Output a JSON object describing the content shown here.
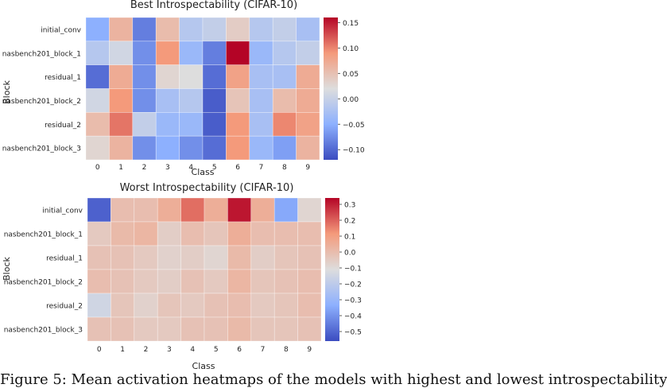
{
  "chart_data": [
    {
      "type": "heatmap",
      "title": "Best Introspectability (CIFAR-10)",
      "xlabel": "Class",
      "ylabel": "Block",
      "x_categories": [
        "0",
        "1",
        "2",
        "3",
        "4",
        "5",
        "6",
        "7",
        "8",
        "9"
      ],
      "y_categories": [
        "initial_conv",
        "nasbench201_block_1",
        "residual_1",
        "nasbench201_block_2",
        "residual_2",
        "nasbench201_block_3"
      ],
      "values": [
        [
          -0.06,
          0.05,
          -0.09,
          0.04,
          -0.03,
          -0.02,
          0.02,
          -0.03,
          -0.02,
          -0.04
        ],
        [
          -0.03,
          -0.01,
          -0.08,
          0.08,
          -0.05,
          -0.09,
          0.16,
          -0.05,
          -0.03,
          -0.02
        ],
        [
          -0.1,
          0.06,
          -0.08,
          0.01,
          0.0,
          -0.1,
          0.07,
          -0.04,
          -0.04,
          0.06
        ],
        [
          -0.01,
          0.08,
          -0.08,
          -0.04,
          -0.03,
          -0.11,
          0.03,
          -0.04,
          0.04,
          0.06
        ],
        [
          0.04,
          0.1,
          -0.02,
          -0.05,
          -0.05,
          -0.11,
          0.08,
          -0.04,
          0.09,
          0.07
        ],
        [
          0.01,
          0.05,
          -0.08,
          -0.06,
          -0.08,
          -0.1,
          0.08,
          -0.05,
          -0.07,
          0.05
        ]
      ],
      "colorbar": {
        "range": [
          -0.12,
          0.16
        ],
        "ticks": [
          "0.15",
          "0.10",
          "0.05",
          "0.00",
          "−0.05",
          "−0.10"
        ]
      },
      "colormap": {
        "low": "#3b4cc0",
        "mid": "#dddddd",
        "high": "#b40426"
      },
      "grid": true
    },
    {
      "type": "heatmap",
      "title": "Worst Introspectability (CIFAR-10)",
      "xlabel": "Class",
      "ylabel": "Block",
      "x_categories": [
        "0",
        "1",
        "2",
        "3",
        "4",
        "5",
        "6",
        "7",
        "8",
        "9"
      ],
      "y_categories": [
        "initial_conv",
        "nasbench201_block_1",
        "residual_1",
        "nasbench201_block_2",
        "residual_2",
        "nasbench201_block_3"
      ],
      "values": [
        [
          -0.5,
          0.08,
          0.08,
          0.12,
          0.22,
          0.12,
          0.32,
          0.12,
          -0.3,
          0.02
        ],
        [
          0.05,
          0.09,
          0.1,
          0.04,
          0.08,
          0.06,
          0.12,
          0.08,
          0.08,
          0.08
        ],
        [
          0.07,
          0.07,
          0.05,
          0.03,
          0.04,
          0.02,
          0.09,
          0.04,
          0.06,
          0.07
        ],
        [
          0.08,
          0.07,
          0.05,
          0.04,
          0.07,
          0.05,
          0.1,
          0.06,
          0.07,
          0.08
        ],
        [
          -0.05,
          0.06,
          0.03,
          0.06,
          0.05,
          0.07,
          0.08,
          0.05,
          0.06,
          0.08
        ],
        [
          0.07,
          0.07,
          0.05,
          0.05,
          0.07,
          0.07,
          0.09,
          0.06,
          0.06,
          0.07
        ]
      ],
      "colorbar": {
        "range": [
          -0.56,
          0.34
        ],
        "ticks": [
          "0.3",
          "0.2",
          "0.1",
          "0.0",
          "−0.1",
          "−0.2",
          "−0.3",
          "−0.4",
          "−0.5"
        ]
      },
      "colormap": {
        "low": "#3b4cc0",
        "mid": "#dddddd",
        "high": "#b40426"
      },
      "grid": true
    }
  ],
  "caption": "Figure 5: Mean activation heatmaps of the models with highest and lowest introspectability"
}
